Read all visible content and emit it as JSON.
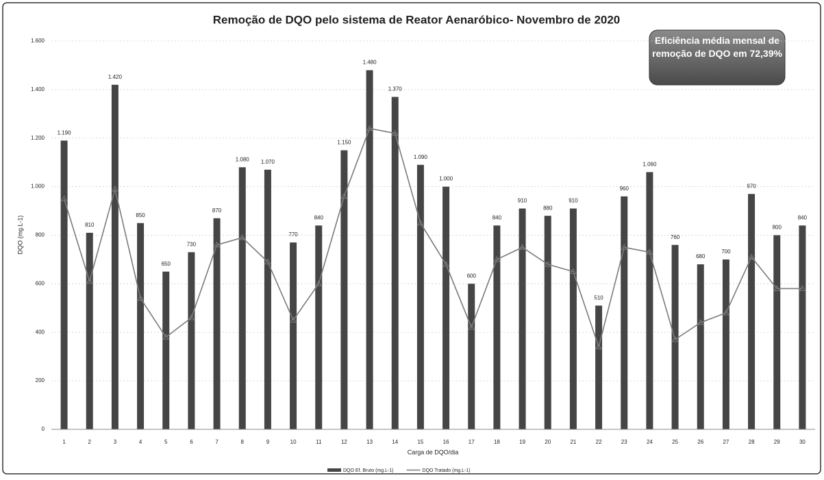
{
  "chart_data": {
    "type": "bar_line",
    "title": "Remoção de DQO pelo sistema de Reator Aenaróbico- Novembro de 2020",
    "annotation": "Eficiência média mensal de remoção de DQO em 72,39%",
    "x_label": "Carga de DQO/dia",
    "y_label": "DQO (mg.L-1)",
    "categories": [
      "1",
      "2",
      "3",
      "4",
      "5",
      "6",
      "7",
      "8",
      "9",
      "10",
      "11",
      "12",
      "13",
      "14",
      "15",
      "16",
      "17",
      "18",
      "19",
      "20",
      "21",
      "22",
      "23",
      "24",
      "25",
      "26",
      "27",
      "28",
      "29",
      "30"
    ],
    "series": [
      {
        "name": "DQO Ef. Bruto (mg.L-1)",
        "type": "bar",
        "color": "#454545",
        "values": [
          1190,
          810,
          1420,
          850,
          650,
          730,
          870,
          1080,
          1070,
          770,
          840,
          1150,
          1480,
          1370,
          1090,
          1000,
          600,
          840,
          910,
          880,
          910,
          510,
          960,
          1060,
          760,
          680,
          700,
          970,
          800,
          840
        ],
        "value_labels": [
          "1.190",
          "810",
          "1.420",
          "850",
          "650",
          "730",
          "870",
          "1.080",
          "1.070",
          "770",
          "840",
          "1.150",
          "1.480",
          "1.370",
          "1.090",
          "1.000",
          "600",
          "840",
          "910",
          "880",
          "910",
          "510",
          "960",
          "1.060",
          "760",
          "680",
          "700",
          "970",
          "800",
          "840"
        ]
      },
      {
        "name": "DQO Tratado (mg.L-1)",
        "type": "line",
        "color": "#7a7a7a",
        "values": [
          950,
          610,
          990,
          540,
          380,
          460,
          760,
          790,
          690,
          450,
          600,
          960,
          1240,
          1220,
          850,
          680,
          420,
          700,
          750,
          680,
          650,
          340,
          750,
          730,
          370,
          440,
          480,
          710,
          580,
          580
        ]
      }
    ],
    "ylim": [
      0,
      1600
    ],
    "yticks": [
      0,
      200,
      400,
      600,
      800,
      {
        "value": 1000,
        "label": "1.000"
      },
      {
        "value": 1200,
        "label": "1.200"
      },
      {
        "value": 1400,
        "label": "1.400"
      },
      {
        "value": 1600,
        "label": "1.600"
      }
    ],
    "grid": true,
    "legend": "bottom"
  }
}
